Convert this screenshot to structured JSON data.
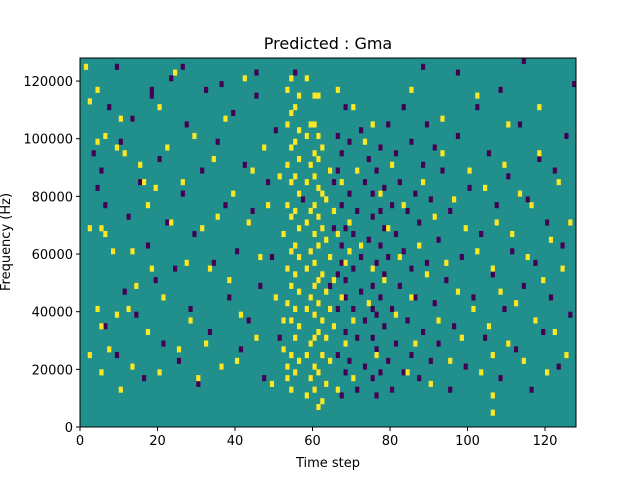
{
  "chart_data": {
    "type": "heatmap",
    "title": "Predicted : Gma",
    "xlabel": "Time step",
    "ylabel": "Frequency (Hz)",
    "xlim": [
      0,
      128
    ],
    "ylim": [
      0,
      128000
    ],
    "x_ticks": [
      0,
      20,
      40,
      60,
      80,
      100,
      120
    ],
    "y_ticks": [
      0,
      20000,
      40000,
      60000,
      80000,
      100000,
      120000
    ],
    "x_tick_labels": [
      "0",
      "20",
      "40",
      "60",
      "80",
      "100",
      "120"
    ],
    "y_tick_labels": [
      "0",
      "20000",
      "40000",
      "60000",
      "80000",
      "100000",
      "120000"
    ],
    "grid": false,
    "legend": "none",
    "value_levels": [
      -1,
      0,
      1
    ],
    "colors": {
      "-1": "#440154",
      "0": "#21908d",
      "1": "#fde725"
    },
    "time_steps": 128,
    "frequency_bins": 64,
    "bin_width_hz": 2000,
    "background_value": 0,
    "cells_high": [
      [
        1,
        62
      ],
      [
        2,
        56
      ],
      [
        2,
        34
      ],
      [
        2,
        12
      ],
      [
        4,
        58
      ],
      [
        4,
        49
      ],
      [
        4,
        20
      ],
      [
        5,
        34
      ],
      [
        5,
        9
      ],
      [
        5,
        17
      ],
      [
        6,
        50
      ],
      [
        6,
        33
      ],
      [
        7,
        13
      ],
      [
        8,
        30
      ],
      [
        9,
        19
      ],
      [
        9,
        48
      ],
      [
        10,
        6
      ],
      [
        10,
        53
      ],
      [
        11,
        47
      ],
      [
        12,
        20
      ],
      [
        13,
        10
      ],
      [
        13,
        30
      ],
      [
        14,
        24
      ],
      [
        15,
        45
      ],
      [
        16,
        42
      ],
      [
        17,
        38
      ],
      [
        17,
        16
      ],
      [
        18,
        27
      ],
      [
        19,
        41
      ],
      [
        20,
        55
      ],
      [
        20,
        9
      ],
      [
        21,
        22
      ],
      [
        22,
        48
      ],
      [
        23,
        35
      ],
      [
        24,
        61
      ],
      [
        25,
        13
      ],
      [
        26,
        42
      ],
      [
        27,
        28
      ],
      [
        28,
        18
      ],
      [
        29,
        50
      ],
      [
        30,
        8
      ],
      [
        31,
        34
      ],
      [
        32,
        14
      ],
      [
        33,
        27
      ],
      [
        34,
        46
      ],
      [
        35,
        36
      ],
      [
        36,
        10
      ],
      [
        37,
        53
      ],
      [
        38,
        25
      ],
      [
        39,
        40
      ],
      [
        40,
        11
      ],
      [
        41,
        19
      ],
      [
        42,
        60
      ],
      [
        43,
        35
      ],
      [
        44,
        44
      ],
      [
        45,
        15
      ],
      [
        46,
        29
      ],
      [
        47,
        48
      ],
      [
        48,
        38
      ],
      [
        49,
        7
      ],
      [
        50,
        22
      ],
      [
        51,
        43
      ],
      [
        52,
        13
      ],
      [
        52,
        18
      ],
      [
        52,
        33
      ],
      [
        53,
        8
      ],
      [
        53,
        10
      ],
      [
        53,
        21
      ],
      [
        53,
        27
      ],
      [
        53,
        38
      ],
      [
        53,
        45
      ],
      [
        53,
        52
      ],
      [
        53,
        58
      ],
      [
        54,
        6
      ],
      [
        54,
        12
      ],
      [
        54,
        18
      ],
      [
        54,
        24
      ],
      [
        54,
        30
      ],
      [
        54,
        36
      ],
      [
        54,
        42
      ],
      [
        54,
        48
      ],
      [
        54,
        54
      ],
      [
        54,
        60
      ],
      [
        55,
        9
      ],
      [
        55,
        15
      ],
      [
        55,
        20
      ],
      [
        55,
        26
      ],
      [
        55,
        31
      ],
      [
        55,
        37
      ],
      [
        55,
        43
      ],
      [
        55,
        49
      ],
      [
        55,
        55
      ],
      [
        56,
        11
      ],
      [
        56,
        17
      ],
      [
        56,
        23
      ],
      [
        56,
        29
      ],
      [
        56,
        34
      ],
      [
        56,
        40
      ],
      [
        56,
        46
      ],
      [
        56,
        51
      ],
      [
        56,
        57
      ],
      [
        58,
        5
      ],
      [
        58,
        12
      ],
      [
        58,
        20
      ],
      [
        58,
        27
      ],
      [
        58,
        35
      ],
      [
        58,
        42
      ],
      [
        58,
        50
      ],
      [
        59,
        8
      ],
      [
        59,
        14
      ],
      [
        59,
        22
      ],
      [
        59,
        30
      ],
      [
        59,
        37
      ],
      [
        59,
        45
      ],
      [
        59,
        52
      ],
      [
        60,
        6
      ],
      [
        60,
        10
      ],
      [
        60,
        15
      ],
      [
        60,
        19
      ],
      [
        60,
        24
      ],
      [
        60,
        28
      ],
      [
        60,
        33
      ],
      [
        60,
        38
      ],
      [
        60,
        43
      ],
      [
        60,
        47
      ],
      [
        60,
        52
      ],
      [
        60,
        57
      ],
      [
        61,
        3
      ],
      [
        61,
        9
      ],
      [
        61,
        16
      ],
      [
        61,
        21
      ],
      [
        61,
        25
      ],
      [
        61,
        31
      ],
      [
        61,
        36
      ],
      [
        61,
        41
      ],
      [
        61,
        46
      ],
      [
        61,
        50
      ],
      [
        62,
        4
      ],
      [
        62,
        12
      ],
      [
        62,
        18
      ],
      [
        62,
        26
      ],
      [
        62,
        34
      ],
      [
        62,
        40
      ],
      [
        62,
        48
      ],
      [
        63,
        7
      ],
      [
        63,
        15
      ],
      [
        63,
        23
      ],
      [
        63,
        32
      ],
      [
        63,
        39
      ],
      [
        64,
        11
      ],
      [
        64,
        20
      ],
      [
        64,
        29
      ],
      [
        64,
        44
      ],
      [
        65,
        17
      ],
      [
        65,
        25
      ],
      [
        65,
        37
      ],
      [
        66,
        6
      ],
      [
        66,
        33
      ],
      [
        67,
        22
      ],
      [
        67,
        42
      ],
      [
        68,
        14
      ],
      [
        68,
        28
      ],
      [
        69,
        30
      ],
      [
        69,
        35
      ],
      [
        70,
        8
      ],
      [
        70,
        18
      ],
      [
        71,
        44
      ],
      [
        72,
        31
      ],
      [
        73,
        49
      ],
      [
        74,
        21
      ],
      [
        75,
        27
      ],
      [
        76,
        12
      ],
      [
        77,
        40
      ],
      [
        78,
        25
      ],
      [
        79,
        34
      ],
      [
        80,
        45
      ],
      [
        81,
        19
      ],
      [
        82,
        29
      ],
      [
        83,
        38
      ],
      [
        84,
        9
      ],
      [
        85,
        22
      ],
      [
        86,
        14
      ],
      [
        87,
        31
      ],
      [
        88,
        42
      ],
      [
        89,
        26
      ],
      [
        90,
        7
      ],
      [
        91,
        36
      ],
      [
        92,
        18
      ],
      [
        93,
        47
      ],
      [
        94,
        28
      ],
      [
        95,
        11
      ],
      [
        96,
        39
      ],
      [
        97,
        23
      ],
      [
        98,
        15
      ],
      [
        99,
        34
      ],
      [
        100,
        44
      ],
      [
        101,
        20
      ],
      [
        102,
        30
      ],
      [
        103,
        9
      ],
      [
        104,
        41
      ],
      [
        105,
        17
      ],
      [
        106,
        2
      ],
      [
        106,
        5
      ],
      [
        106,
        12
      ],
      [
        106,
        27
      ],
      [
        107,
        35
      ],
      [
        108,
        23
      ],
      [
        109,
        45
      ],
      [
        110,
        14
      ],
      [
        111,
        33
      ],
      [
        112,
        21
      ],
      [
        113,
        40
      ],
      [
        114,
        11
      ],
      [
        115,
        29
      ],
      [
        116,
        38
      ],
      [
        117,
        18
      ],
      [
        118,
        47
      ],
      [
        119,
        25
      ],
      [
        120,
        9
      ],
      [
        121,
        32
      ],
      [
        122,
        16
      ],
      [
        123,
        42
      ],
      [
        124,
        27
      ],
      [
        125,
        12
      ],
      [
        126,
        35
      ],
      [
        58,
        60
      ],
      [
        61,
        57
      ],
      [
        66,
        58
      ],
      [
        70,
        55
      ],
      [
        75,
        52
      ],
      [
        85,
        58
      ],
      [
        93,
        53
      ],
      [
        102,
        57
      ],
      [
        110,
        52
      ],
      [
        118,
        55
      ]
    ],
    "cells_low": [
      [
        3,
        47
      ],
      [
        4,
        41
      ],
      [
        5,
        44
      ],
      [
        6,
        38
      ],
      [
        6,
        17
      ],
      [
        7,
        55
      ],
      [
        8,
        30
      ],
      [
        9,
        12
      ],
      [
        10,
        49
      ],
      [
        11,
        23
      ],
      [
        12,
        36
      ],
      [
        13,
        53
      ],
      [
        14,
        19
      ],
      [
        15,
        42
      ],
      [
        16,
        8
      ],
      [
        17,
        31
      ],
      [
        18,
        57
      ],
      [
        19,
        25
      ],
      [
        20,
        46
      ],
      [
        21,
        14
      ],
      [
        22,
        35
      ],
      [
        23,
        60
      ],
      [
        24,
        27
      ],
      [
        25,
        11
      ],
      [
        26,
        40
      ],
      [
        27,
        52
      ],
      [
        28,
        20
      ],
      [
        29,
        33
      ],
      [
        30,
        7
      ],
      [
        31,
        44
      ],
      [
        32,
        58
      ],
      [
        33,
        16
      ],
      [
        34,
        28
      ],
      [
        35,
        49
      ],
      [
        36,
        10
      ],
      [
        37,
        38
      ],
      [
        38,
        22
      ],
      [
        39,
        54
      ],
      [
        40,
        30
      ],
      [
        41,
        13
      ],
      [
        42,
        45
      ],
      [
        43,
        18
      ],
      [
        44,
        37
      ],
      [
        45,
        61
      ],
      [
        46,
        24
      ],
      [
        47,
        8
      ],
      [
        48,
        42
      ],
      [
        49,
        29
      ],
      [
        50,
        51
      ],
      [
        51,
        15
      ],
      [
        57,
        39
      ],
      [
        64,
        24
      ],
      [
        65,
        34
      ],
      [
        65,
        42
      ],
      [
        66,
        12
      ],
      [
        66,
        20
      ],
      [
        66,
        26
      ],
      [
        66,
        44
      ],
      [
        66,
        50
      ],
      [
        67,
        5
      ],
      [
        67,
        28
      ],
      [
        67,
        31
      ],
      [
        67,
        38
      ],
      [
        67,
        47
      ],
      [
        68,
        9
      ],
      [
        68,
        16
      ],
      [
        68,
        22
      ],
      [
        68,
        25
      ],
      [
        68,
        34
      ],
      [
        68,
        55
      ],
      [
        69,
        11
      ],
      [
        69,
        40
      ],
      [
        69,
        49
      ],
      [
        70,
        20
      ],
      [
        70,
        27
      ],
      [
        70,
        33
      ],
      [
        71,
        6
      ],
      [
        71,
        15
      ],
      [
        71,
        37
      ],
      [
        72,
        23
      ],
      [
        72,
        29
      ],
      [
        72,
        51
      ],
      [
        73,
        10
      ],
      [
        73,
        18
      ],
      [
        73,
        42
      ],
      [
        74,
        32
      ],
      [
        74,
        46
      ],
      [
        75,
        8
      ],
      [
        75,
        15
      ],
      [
        75,
        20
      ],
      [
        75,
        24
      ],
      [
        75,
        36
      ],
      [
        75,
        40
      ],
      [
        76,
        5
      ],
      [
        76,
        13
      ],
      [
        76,
        19
      ],
      [
        76,
        28
      ],
      [
        76,
        44
      ],
      [
        77,
        9
      ],
      [
        77,
        22
      ],
      [
        77,
        31
      ],
      [
        77,
        37
      ],
      [
        77,
        48
      ],
      [
        78,
        17
      ],
      [
        78,
        26
      ],
      [
        78,
        34
      ],
      [
        78,
        41
      ],
      [
        79,
        11
      ],
      [
        79,
        29
      ],
      [
        79,
        52
      ],
      [
        80,
        6
      ],
      [
        80,
        20
      ],
      [
        80,
        38
      ],
      [
        81,
        14
      ],
      [
        81,
        33
      ],
      [
        81,
        47
      ],
      [
        82,
        24
      ],
      [
        82,
        42
      ],
      [
        83,
        9
      ],
      [
        83,
        30
      ],
      [
        83,
        55
      ],
      [
        84,
        18
      ],
      [
        84,
        37
      ],
      [
        85,
        12
      ],
      [
        85,
        27
      ],
      [
        85,
        49
      ],
      [
        86,
        22
      ],
      [
        86,
        40
      ],
      [
        87,
        8
      ],
      [
        87,
        35
      ],
      [
        88,
        16
      ],
      [
        88,
        45
      ],
      [
        89,
        28
      ],
      [
        89,
        52
      ],
      [
        90,
        11
      ],
      [
        90,
        39
      ],
      [
        91,
        21
      ],
      [
        91,
        48
      ],
      [
        92,
        32
      ],
      [
        92,
        14
      ],
      [
        93,
        44
      ],
      [
        94,
        25
      ],
      [
        95,
        6
      ],
      [
        95,
        37
      ],
      [
        96,
        17
      ],
      [
        97,
        50
      ],
      [
        98,
        29
      ],
      [
        99,
        10
      ],
      [
        100,
        41
      ],
      [
        101,
        22
      ],
      [
        102,
        55
      ],
      [
        103,
        33
      ],
      [
        104,
        15
      ],
      [
        105,
        47
      ],
      [
        106,
        26
      ],
      [
        107,
        38
      ],
      [
        108,
        8
      ],
      [
        109,
        20
      ],
      [
        110,
        43
      ],
      [
        111,
        30
      ],
      [
        112,
        13
      ],
      [
        113,
        52
      ],
      [
        114,
        24
      ],
      [
        115,
        39
      ],
      [
        116,
        6
      ],
      [
        117,
        28
      ],
      [
        118,
        46
      ],
      [
        119,
        16
      ],
      [
        120,
        35
      ],
      [
        121,
        22
      ],
      [
        122,
        44
      ],
      [
        123,
        10
      ],
      [
        124,
        31
      ],
      [
        125,
        50
      ],
      [
        126,
        19
      ],
      [
        127,
        59
      ],
      [
        9,
        62
      ],
      [
        18,
        58
      ],
      [
        26,
        62
      ],
      [
        36,
        59
      ],
      [
        45,
        57
      ],
      [
        55,
        61
      ],
      [
        88,
        62
      ],
      [
        97,
        61
      ],
      [
        108,
        58
      ],
      [
        114,
        63
      ]
    ]
  }
}
